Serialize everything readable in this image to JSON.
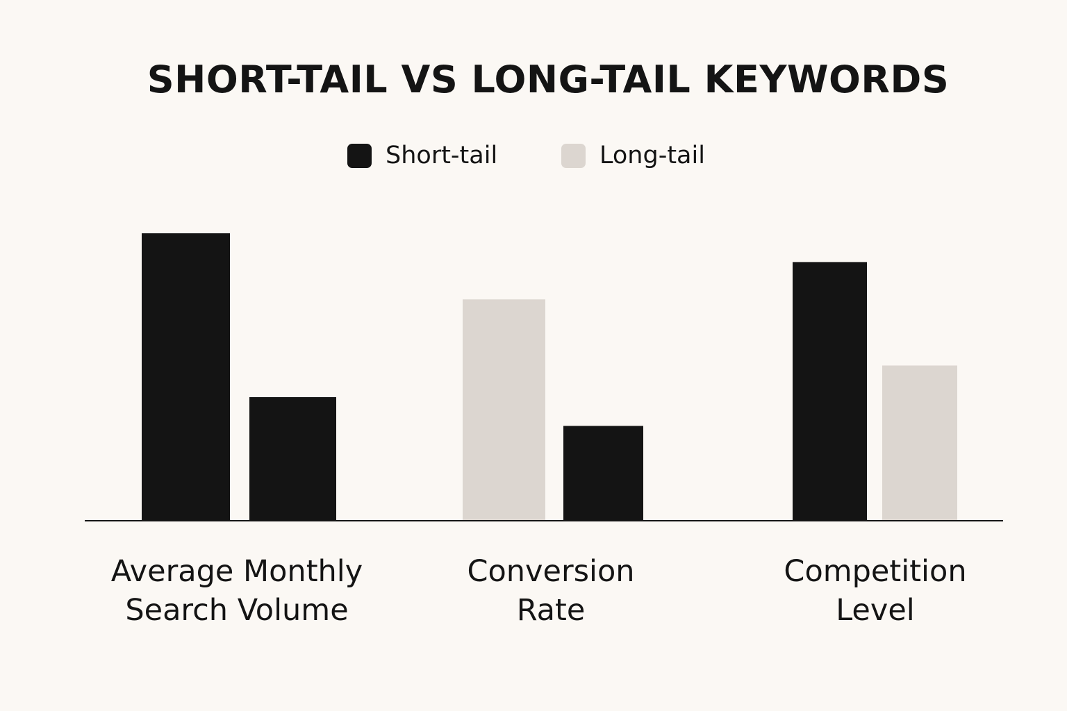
{
  "colors": {
    "background": "#fbf8f4",
    "short_tail": "#141414",
    "long_tail": "#dcd6d0"
  },
  "chart_data": {
    "type": "bar",
    "title": "SHORT-TAIL VS LONG-TAIL KEYWORDS",
    "legend": {
      "placement": "top-center",
      "items": [
        {
          "label": "Short-tail",
          "color_key": "short_tail"
        },
        {
          "label": "Long-tail",
          "color_key": "long_tail"
        }
      ]
    },
    "categories": [
      {
        "lines": [
          "Average Monthly",
          "Search Volume"
        ]
      },
      {
        "lines": [
          "Conversion",
          "Rate"
        ]
      },
      {
        "lines": [
          "Competition",
          "Level"
        ]
      }
    ],
    "bars": [
      [
        {
          "value": 100,
          "color_key": "short_tail"
        },
        {
          "value": 43,
          "color_key": "short_tail"
        }
      ],
      [
        {
          "value": 77,
          "color_key": "long_tail"
        },
        {
          "value": 33,
          "color_key": "short_tail"
        }
      ],
      [
        {
          "value": 90,
          "color_key": "short_tail"
        },
        {
          "value": 54,
          "color_key": "long_tail"
        }
      ]
    ],
    "ylim": [
      0,
      100
    ],
    "grid": false,
    "y_axis_shown": false
  }
}
